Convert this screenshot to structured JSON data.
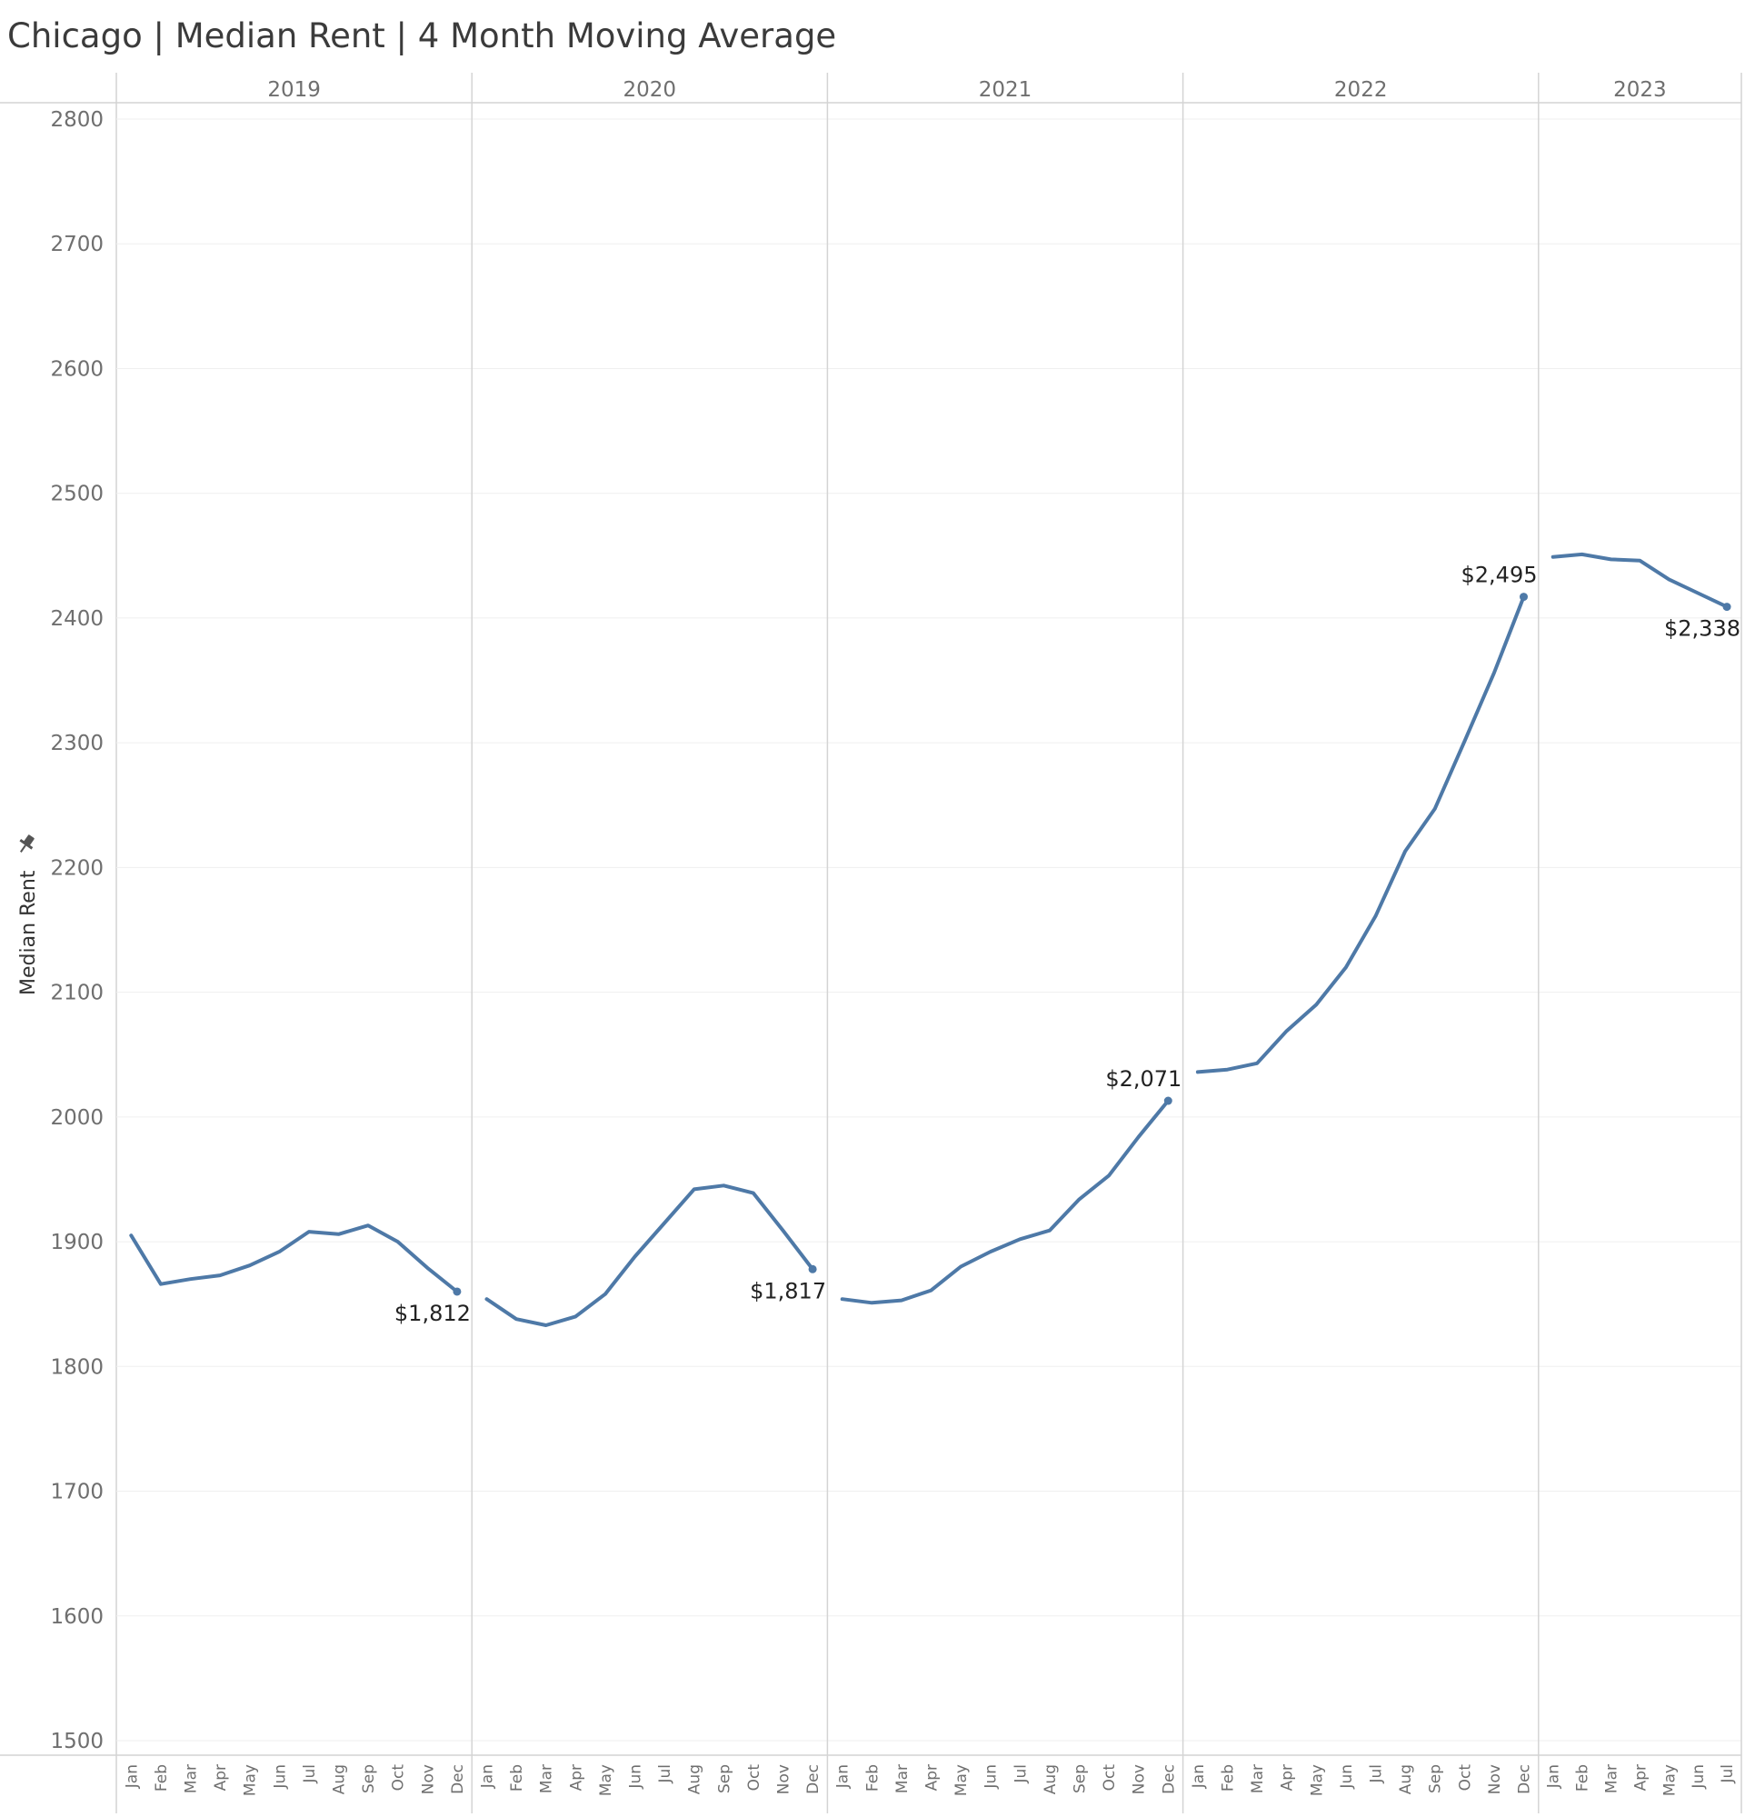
{
  "chart_data": {
    "type": "line",
    "title": "Chicago | Median Rent | 4 Month Moving Average",
    "ylabel": "Median Rent",
    "ylim": [
      1500,
      2800
    ],
    "yticks": [
      1500,
      1600,
      1700,
      1800,
      1900,
      2000,
      2100,
      2200,
      2300,
      2400,
      2500,
      2600,
      2700,
      2800
    ],
    "grid": true,
    "line_color": "#4e79a7",
    "years": [
      {
        "label": "2019",
        "months": [
          "Jan",
          "Feb",
          "Mar",
          "Apr",
          "May",
          "Jun",
          "Jul",
          "Aug",
          "Sep",
          "Oct",
          "Nov",
          "Dec"
        ],
        "values": [
          1905,
          1866,
          1870,
          1873,
          1881,
          1892,
          1908,
          1906,
          1913,
          1900,
          1879,
          1860
        ],
        "end_label": "$1,812"
      },
      {
        "label": "2020",
        "months": [
          "Jan",
          "Feb",
          "Mar",
          "Apr",
          "May",
          "Jun",
          "Jul",
          "Aug",
          "Sep",
          "Oct",
          "Nov",
          "Dec"
        ],
        "values": [
          1854,
          1838,
          1833,
          1840,
          1858,
          1888,
          1915,
          1942,
          1945,
          1939,
          1909,
          1878
        ],
        "end_label": "$1,817"
      },
      {
        "label": "2021",
        "months": [
          "Jan",
          "Feb",
          "Mar",
          "Apr",
          "May",
          "Jun",
          "Jul",
          "Aug",
          "Sep",
          "Oct",
          "Nov",
          "Dec"
        ],
        "values": [
          1854,
          1851,
          1853,
          1861,
          1880,
          1892,
          1902,
          1909,
          1934,
          1953,
          1984,
          2013
        ],
        "end_label": "$2,071"
      },
      {
        "label": "2022",
        "months": [
          "Jan",
          "Feb",
          "Mar",
          "Apr",
          "May",
          "Jun",
          "Jul",
          "Aug",
          "Sep",
          "Oct",
          "Nov",
          "Dec"
        ],
        "values": [
          2036,
          2038,
          2043,
          2069,
          2090,
          2120,
          2161,
          2213,
          2247,
          2301,
          2356,
          2417
        ],
        "end_label": "$2,495"
      },
      {
        "label": "2023",
        "months": [
          "Jan",
          "Feb",
          "Mar",
          "Apr",
          "May",
          "Jun",
          "Jul"
        ],
        "values": [
          2449,
          2451,
          2447,
          2446,
          2431,
          2420,
          2409
        ],
        "end_label": "$2,338"
      }
    ]
  }
}
